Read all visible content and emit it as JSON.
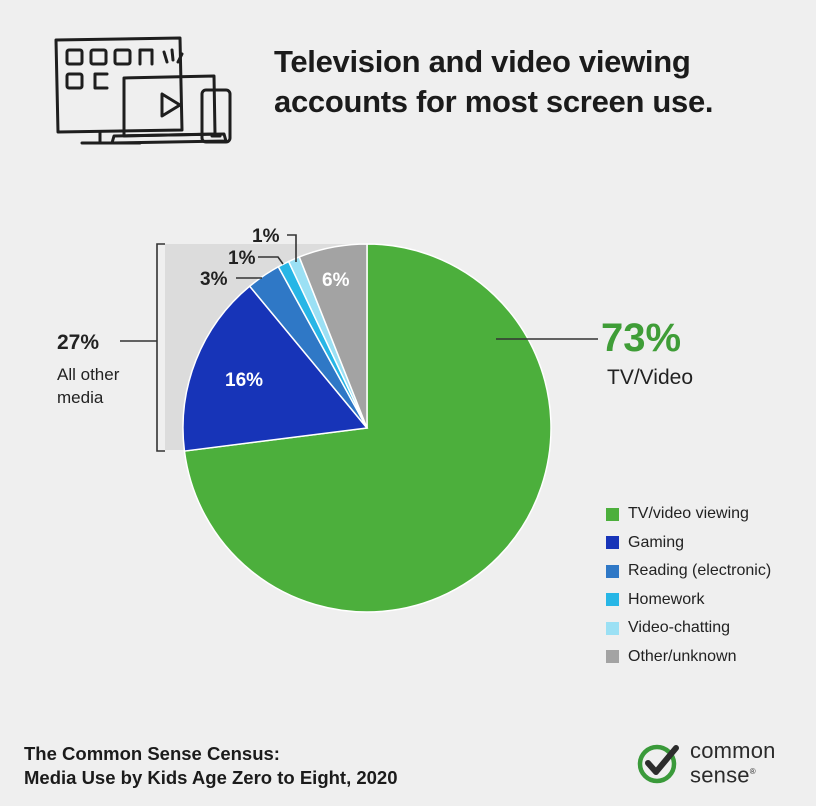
{
  "header": {
    "title_line1": "Television and video viewing",
    "title_line2": "accounts for most screen use.",
    "icon": "tv-video-devices-icon"
  },
  "chart_data": {
    "type": "pie",
    "series": [
      {
        "name": "TV/video viewing",
        "value": 73,
        "label": "73%",
        "color": "#4caf3c"
      },
      {
        "name": "Gaming",
        "value": 16,
        "label": "16%",
        "color": "#1734b8"
      },
      {
        "name": "Reading (electronic)",
        "value": 3,
        "label": "3%",
        "color": "#2f78c6"
      },
      {
        "name": "Homework",
        "value": 1,
        "label": "1%",
        "color": "#27b6e6"
      },
      {
        "name": "Video-chatting",
        "value": 1,
        "label": "1%",
        "color": "#9be0f4"
      },
      {
        "name": "Other/unknown",
        "value": 6,
        "label": "6%",
        "color": "#a3a3a3"
      }
    ],
    "callouts": {
      "main_value": "73%",
      "main_label": "TV/Video",
      "group_value": "27%",
      "group_label_line1": "All other",
      "group_label_line2": "media"
    },
    "legend_position": "bottom-right"
  },
  "footer": {
    "source_line1": "The Common Sense Census:",
    "source_line2": "Media Use by Kids Age Zero to Eight, 2020",
    "brand_line1": "common",
    "brand_line2": "sense",
    "brand_mark": "®",
    "logo_icon": "checkmark-circle-icon",
    "brand_color": "#3a9a3a"
  }
}
